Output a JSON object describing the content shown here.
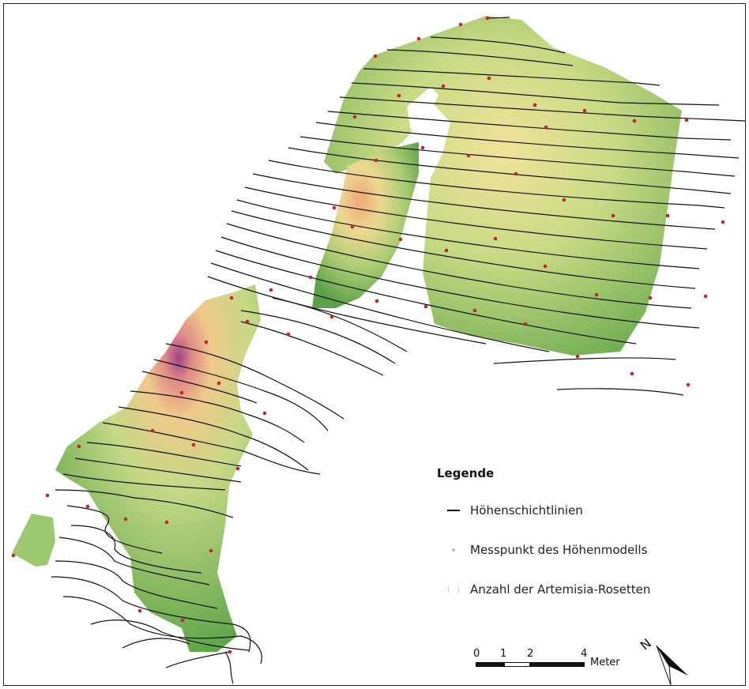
{
  "legend": {
    "title": "Legende",
    "items": [
      {
        "label": "Höhenschichtlinien",
        "symbol": "line"
      },
      {
        "label": "Messpunkt des Höhenmodells",
        "symbol": "dot"
      },
      {
        "label": "Anzahl der Artemisia-Rosetten",
        "symbol": "bars"
      }
    ]
  },
  "scalebar": {
    "ticks": [
      "0",
      "1",
      "2",
      "4"
    ],
    "unit": "Meter"
  },
  "north_arrow": {
    "label": "N"
  },
  "colors": {
    "low": "#6aaa4f",
    "mid": "#b8d37a",
    "high": "#f2e39a",
    "peak": "#f0a878",
    "summit": "#a0428c",
    "points": "#c0272d",
    "contours": "#111111"
  }
}
